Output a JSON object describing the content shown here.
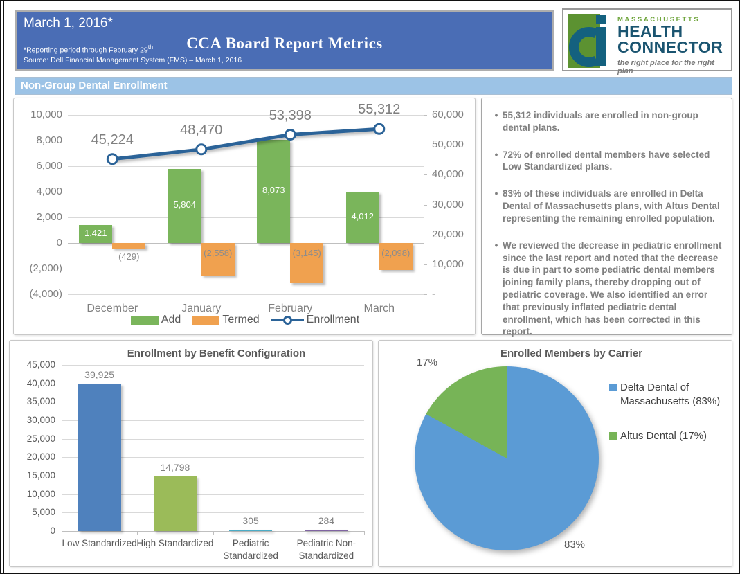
{
  "header": {
    "date": "March 1, 2016*",
    "title": "CCA Board Report Metrics",
    "note_prefix": "*Reporting period through February 29",
    "note_sup": "th",
    "source": "Source: Dell Financial Management System (FMS) – March 1, 2016"
  },
  "logo": {
    "region": "MASSACHUSETTS",
    "name_line1": "HEALTH",
    "name_line2": "CONNECTOR",
    "tagline": "the right place for the right plan"
  },
  "section_title": "Non-Group Dental Enrollment",
  "colors": {
    "banner_blue": "#4A6DB5",
    "section_blue": "#9CC3E6",
    "logo_green": "#5C9231",
    "logo_blue": "#14617F",
    "gridline": "#D9D9D9",
    "axis_text": "#808080"
  },
  "bullets": [
    "55,312 individuals are enrolled in non-group dental plans.",
    "72% of enrolled dental members have selected Low Standardized plans.",
    "83% of these individuals are enrolled in Delta Dental of Massachusetts plans, with Altus Dental representing the remaining enrolled population.",
    "We reviewed the decrease in pediatric enrollment since the last report and noted that the decrease is due in part to some pediatric dental members joining family plans, thereby dropping out of pediatric coverage.  We also identified an error that previously inflated pediatric dental enrollment, which has been corrected in this report."
  ],
  "chart_data": [
    {
      "id": "non-group-dental-enrollment",
      "type": "bar",
      "subtype": "combo-bar-line",
      "categories": [
        "December",
        "January",
        "February",
        "March"
      ],
      "series": [
        {
          "name": "Add",
          "type": "bar",
          "color": "#7AB55B",
          "values": [
            1421,
            5804,
            8073,
            4012
          ],
          "labels": [
            "1,421",
            "5,804",
            "8,073",
            "4,012"
          ],
          "label_color": "#FFFFFF"
        },
        {
          "name": "Termed",
          "type": "bar",
          "color": "#F0A14F",
          "values": [
            -429,
            -2558,
            -3145,
            -2098
          ],
          "labels": [
            "(429)",
            "(2,558)",
            "(3,145)",
            "(2,098)"
          ],
          "label_color": "#8C8C8C"
        },
        {
          "name": "Enrollment",
          "type": "line",
          "axis": "right",
          "color": "#2B6398",
          "values": [
            45224,
            48470,
            53398,
            55312
          ],
          "labels": [
            "45,224",
            "48,470",
            "53,398",
            "55,312"
          ],
          "label_color": "#7F7F7F"
        }
      ],
      "left_axis": {
        "min": -4000,
        "max": 10000,
        "step": 2000,
        "ticks": [
          "10,000",
          "8,000",
          "6,000",
          "4,000",
          "2,000",
          "0",
          "(2,000)",
          "(4,000)"
        ]
      },
      "right_axis": {
        "min": 0,
        "max": 60000,
        "step": 10000,
        "ticks": [
          "60,000",
          "50,000",
          "40,000",
          "30,000",
          "20,000",
          "10,000",
          "-"
        ]
      },
      "legend_position": "bottom",
      "grid": true
    },
    {
      "id": "enrollment-by-benefit-configuration",
      "type": "bar",
      "title": "Enrollment by Benefit Configuration",
      "categories": [
        "Low Standardized",
        "High Standardized",
        "Pediatric|Standardized",
        "Pediatric Non-|Standardized"
      ],
      "values": [
        39925,
        14798,
        305,
        284
      ],
      "labels": [
        "39,925",
        "14,798",
        "305",
        "284"
      ],
      "bar_colors": [
        "#4F81BD",
        "#9BBB59",
        "#4BACC6",
        "#8064A2"
      ],
      "ylim": [
        0,
        45000
      ],
      "yticks": [
        "45,000",
        "40,000",
        "35,000",
        "30,000",
        "25,000",
        "20,000",
        "15,000",
        "10,000",
        "5,000",
        "0"
      ],
      "grid": true
    },
    {
      "id": "enrolled-members-by-carrier",
      "type": "pie",
      "title": "Enrolled Members by Carrier",
      "slices": [
        {
          "label": "Delta Dental of Massachusetts (83%)",
          "value": 83,
          "color": "#5B9BD5",
          "callout": "83%"
        },
        {
          "label": "Altus Dental (17%)",
          "value": 17,
          "color": "#77B457",
          "callout": "17%"
        }
      ],
      "legend_position": "right"
    }
  ]
}
